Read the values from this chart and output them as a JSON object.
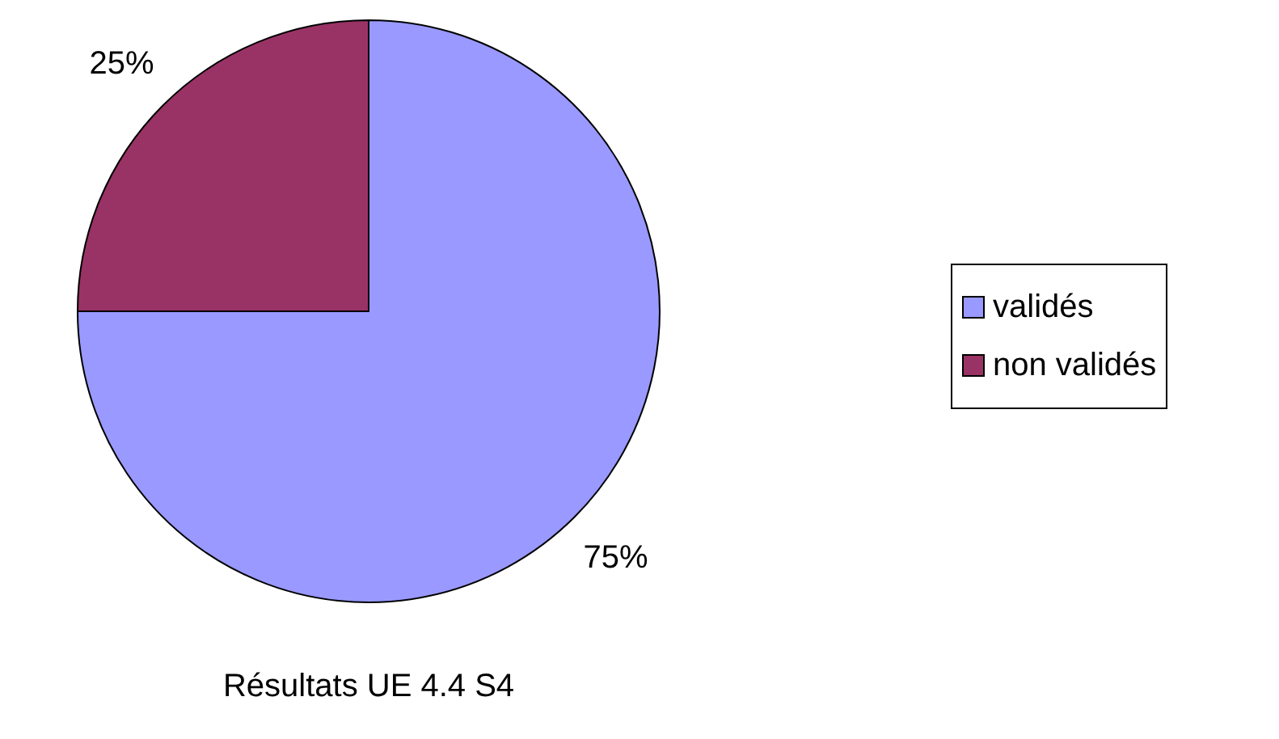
{
  "chart_data": {
    "type": "pie",
    "title": "Résultats UE 4.4 S4",
    "categories": [
      "validés",
      "non validés"
    ],
    "values": [
      75,
      25
    ],
    "value_labels": [
      "75%",
      "25%"
    ],
    "colors": [
      "#9999ff",
      "#993366"
    ],
    "legend": "right"
  }
}
